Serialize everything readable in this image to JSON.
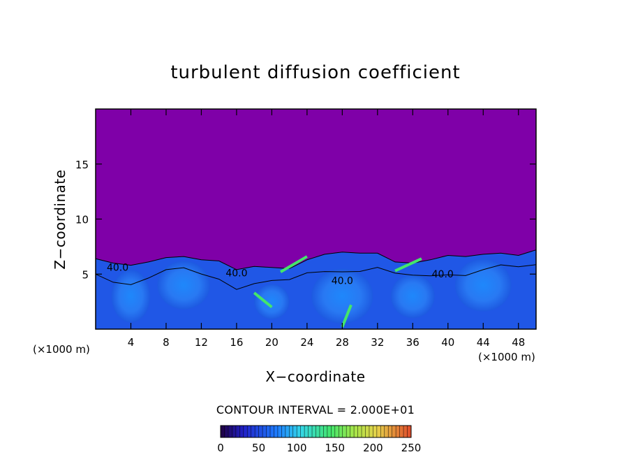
{
  "chart_data": {
    "type": "heatmap",
    "title": "turbulent diffusion coefficient",
    "xlabel": "X−coordinate",
    "ylabel": "Z−coordinate",
    "x_unit_left": "(×1000 m)",
    "x_unit_right": "(×1000 m)",
    "xlim": [
      0,
      50
    ],
    "ylim": [
      0,
      20
    ],
    "xticks": [
      4,
      8,
      12,
      16,
      20,
      24,
      28,
      32,
      36,
      40,
      44,
      48
    ],
    "yticks": [
      5,
      10,
      15
    ],
    "contour_interval_text": "CONTOUR INTERVAL = 2.000E+01",
    "contour_labels": [
      {
        "text": "40.0",
        "x": 2.5,
        "z": 5.3
      },
      {
        "text": "40.0",
        "x": 16.0,
        "z": 4.8
      },
      {
        "text": "40.0",
        "x": 28.0,
        "z": 4.1
      },
      {
        "text": "40.0",
        "x": 39.4,
        "z": 4.7
      }
    ],
    "background_value_color": "#7f00a8",
    "colorbar": {
      "range": [
        0,
        250
      ],
      "ticks": [
        0,
        50,
        100,
        150,
        200,
        250
      ]
    },
    "interface_height_profile": [
      [
        0,
        6.4
      ],
      [
        2,
        6.0
      ],
      [
        4,
        5.8
      ],
      [
        6,
        6.1
      ],
      [
        8,
        6.5
      ],
      [
        10,
        6.6
      ],
      [
        12,
        6.3
      ],
      [
        14,
        6.2
      ],
      [
        16,
        5.4
      ],
      [
        18,
        5.7
      ],
      [
        20,
        5.6
      ],
      [
        22,
        5.5
      ],
      [
        24,
        6.3
      ],
      [
        26,
        6.8
      ],
      [
        28,
        7.0
      ],
      [
        30,
        6.9
      ],
      [
        32,
        6.9
      ],
      [
        34,
        6.1
      ],
      [
        36,
        6.0
      ],
      [
        38,
        6.3
      ],
      [
        40,
        6.7
      ],
      [
        42,
        6.6
      ],
      [
        44,
        6.8
      ],
      [
        46,
        6.9
      ],
      [
        48,
        6.7
      ],
      [
        50,
        7.2
      ]
    ]
  }
}
